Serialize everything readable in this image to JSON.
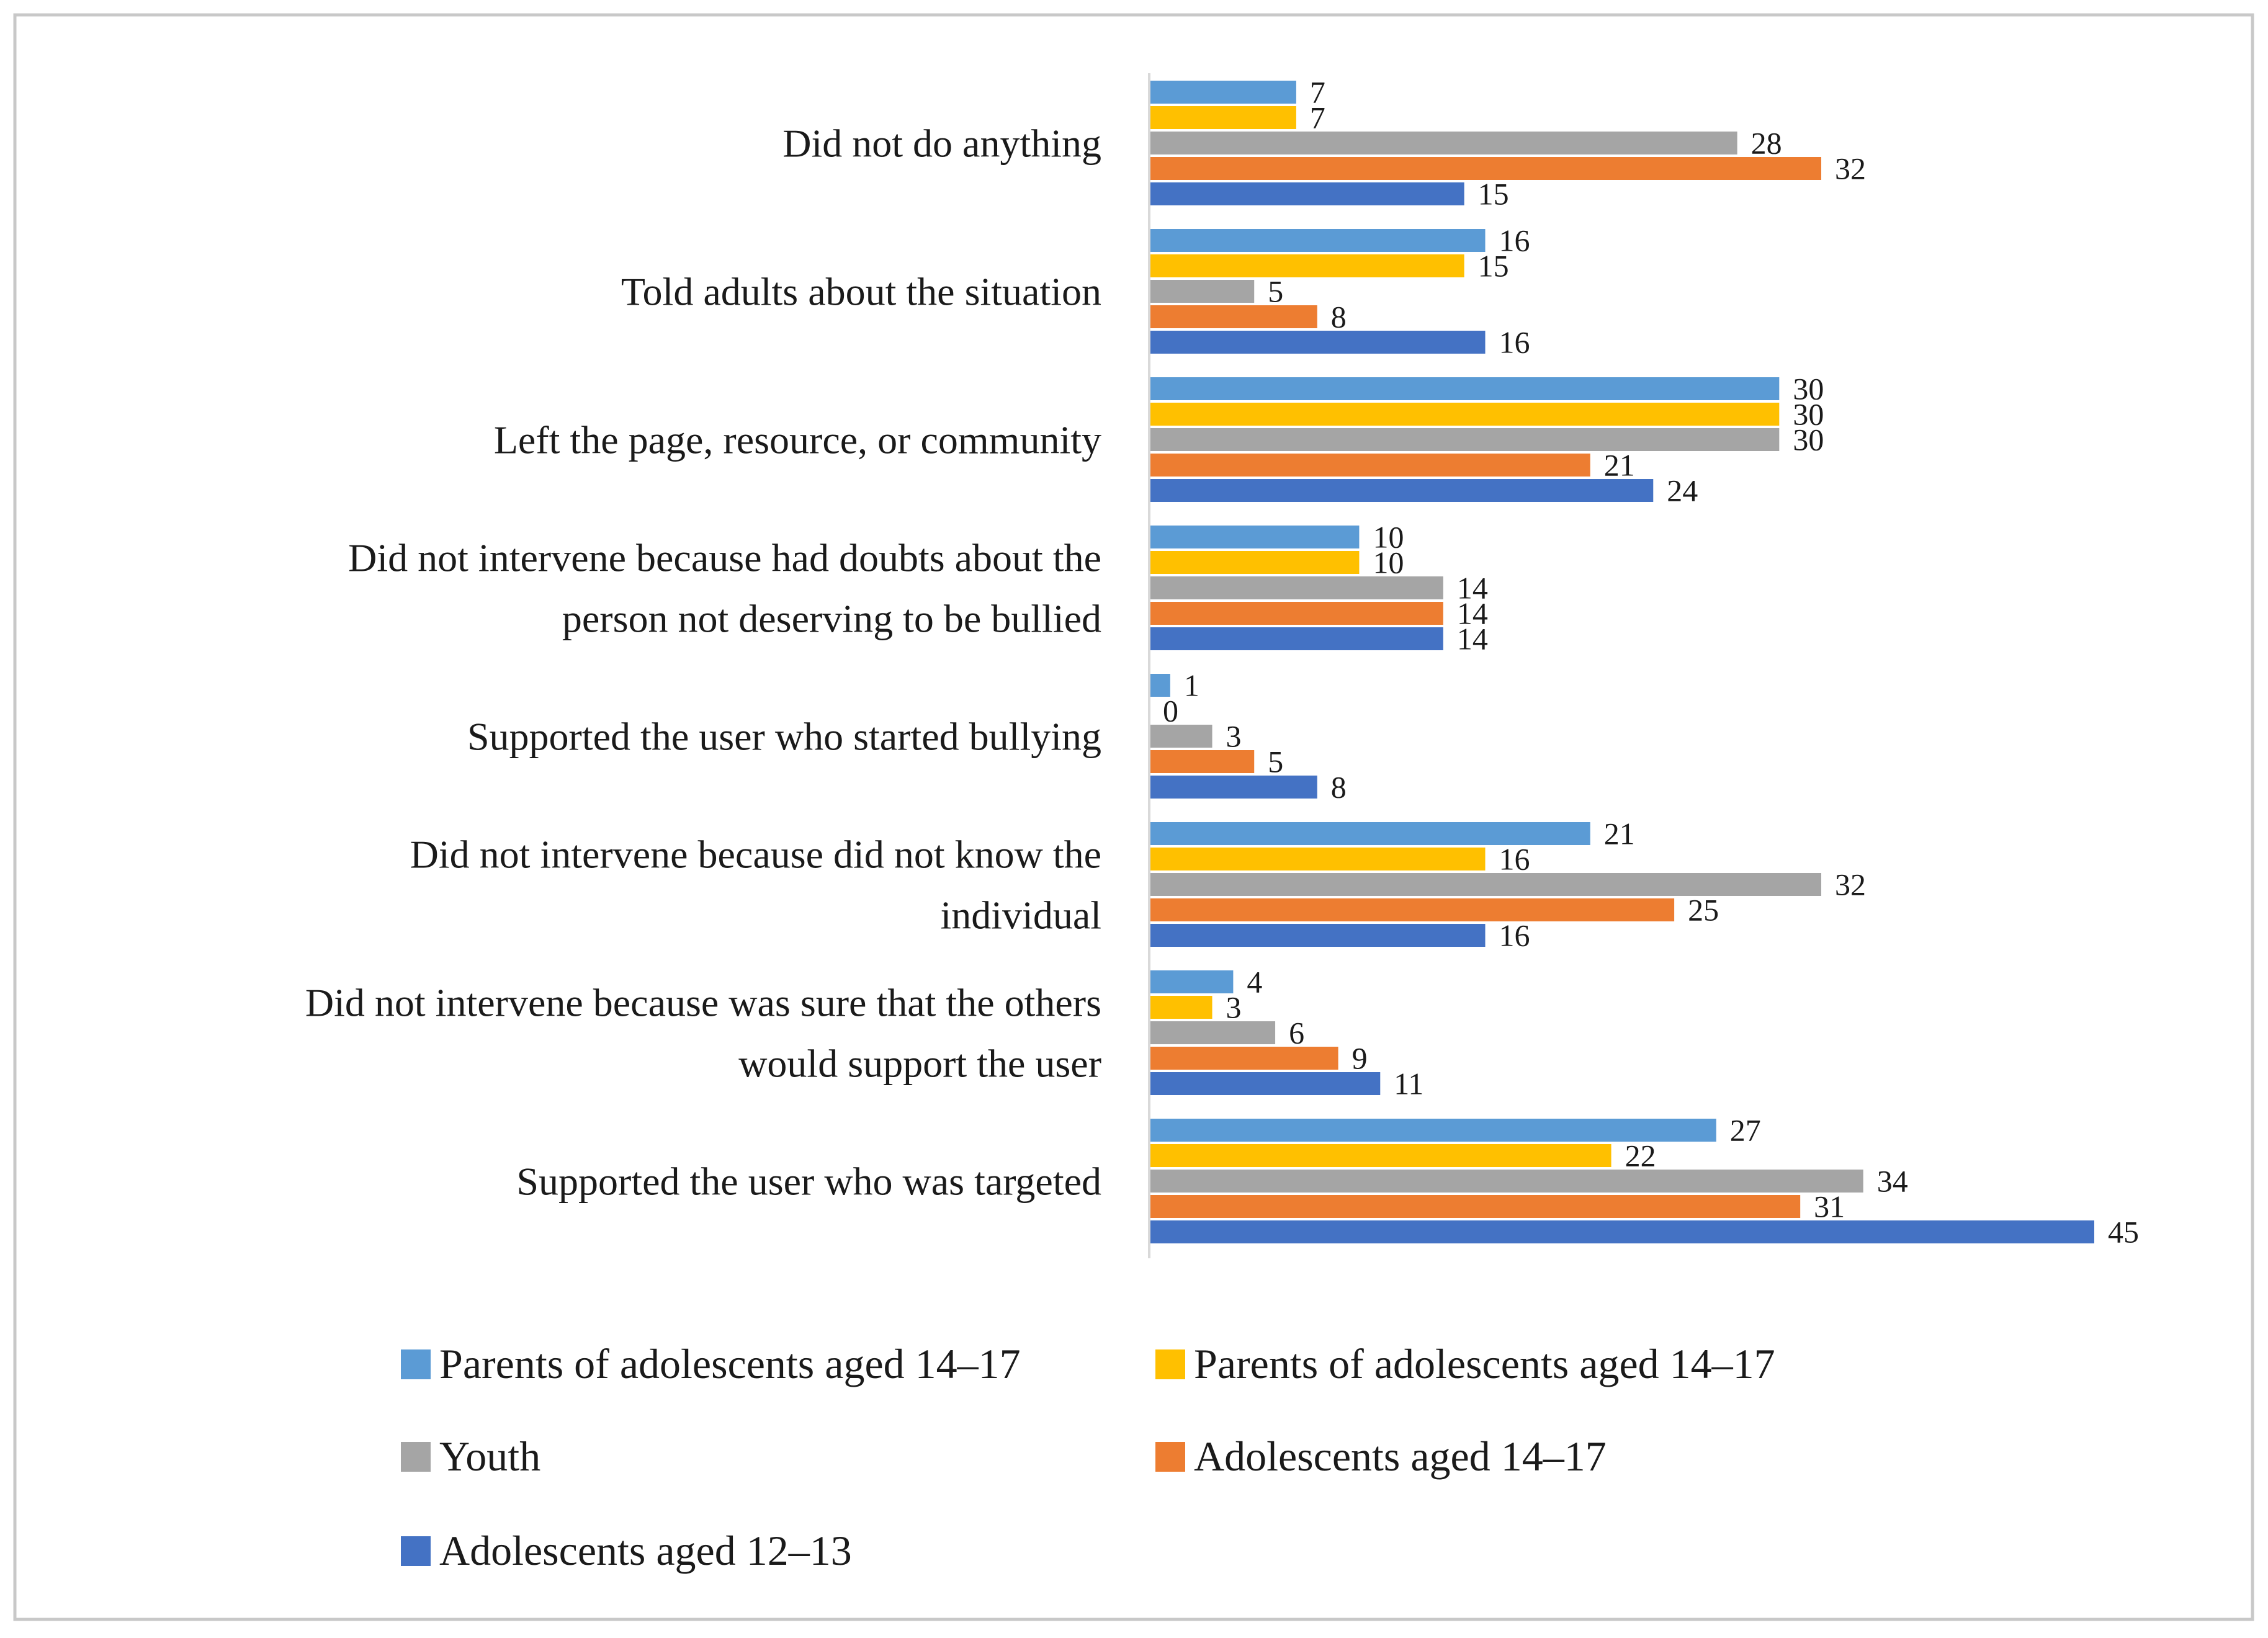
{
  "chart_data": {
    "type": "bar",
    "orientation": "horizontal",
    "title": "",
    "xlabel": "",
    "ylabel": "",
    "xlim": [
      0,
      45
    ],
    "grid": false,
    "legend_position": "bottom",
    "categories": [
      [
        "Did not do anything"
      ],
      [
        "Told adults about the situation"
      ],
      [
        "Left the page, resource, or community"
      ],
      [
        "Did not intervene because had doubts about the",
        "person not deserving to be bullied"
      ],
      [
        "Supported the user who started bullying"
      ],
      [
        "Did not intervene because did not know the",
        "individual"
      ],
      [
        "Did not intervene because was sure that the others",
        "would support the user"
      ],
      [
        "Supported the user who was targeted"
      ]
    ],
    "series": [
      {
        "name": "Parents of adolescents aged 14–17",
        "color": "#5b9bd5",
        "values": [
          7,
          16,
          30,
          10,
          1,
          21,
          4,
          27
        ]
      },
      {
        "name": "Parents of adolescents aged 14–17",
        "color": "#ffc000",
        "values": [
          7,
          15,
          30,
          10,
          0,
          16,
          3,
          22
        ]
      },
      {
        "name": "Youth",
        "color": "#a5a5a5",
        "values": [
          28,
          5,
          30,
          14,
          3,
          32,
          6,
          34
        ]
      },
      {
        "name": "Adolescents aged 14–17",
        "color": "#ed7d31",
        "values": [
          32,
          8,
          21,
          14,
          5,
          25,
          9,
          31
        ]
      },
      {
        "name": "Adolescents aged 12–13",
        "color": "#4472c4",
        "values": [
          15,
          16,
          24,
          14,
          8,
          16,
          11,
          45
        ]
      }
    ]
  }
}
